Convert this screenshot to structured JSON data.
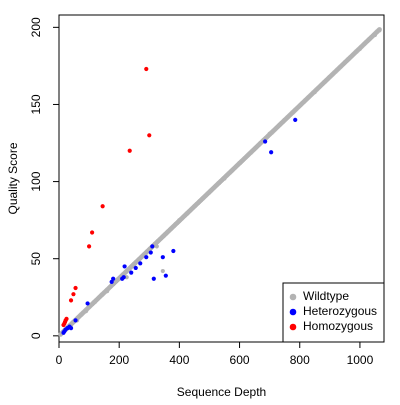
{
  "chart_data": {
    "type": "scatter",
    "xlabel": "Sequence Depth",
    "ylabel": "Quality Score",
    "xlim": [
      0,
      1080
    ],
    "ylim": [
      -4,
      208
    ],
    "x_ticks": [
      0,
      200,
      400,
      600,
      800,
      1000
    ],
    "x_tick_labels": [
      "0",
      "200",
      "400",
      "600",
      "800",
      "1000"
    ],
    "y_ticks": [
      0,
      50,
      100,
      150,
      200
    ],
    "y_tick_labels": [
      "0",
      "50",
      "100",
      "150",
      "200"
    ],
    "grid": false,
    "legend": {
      "position": "bottom-right",
      "entries": [
        {
          "label": "Wildtype",
          "color": "#b3b3b3"
        },
        {
          "label": "Heterozygous",
          "color": "#0000ff"
        },
        {
          "label": "Homozygous",
          "color": "#ff0000"
        }
      ]
    },
    "series": [
      {
        "name": "Wildtype",
        "color": "#b3b3b3",
        "trend": {
          "x_from": 5,
          "x_to": 1065,
          "slope": 0.1865,
          "intercept": 0
        },
        "points": [
          [
            20,
            4
          ],
          [
            30,
            5
          ],
          [
            40,
            7
          ],
          [
            60,
            10
          ],
          [
            90,
            16
          ],
          [
            120,
            22
          ],
          [
            160,
            29
          ],
          [
            200,
            37
          ],
          [
            250,
            46
          ],
          [
            300,
            56
          ],
          [
            350,
            65
          ],
          [
            400,
            75
          ],
          [
            450,
            84
          ],
          [
            500,
            93
          ],
          [
            550,
            102
          ],
          [
            600,
            112
          ],
          [
            650,
            121
          ],
          [
            700,
            131
          ],
          [
            750,
            140
          ],
          [
            800,
            149
          ],
          [
            850,
            158
          ],
          [
            900,
            168
          ],
          [
            950,
            177
          ],
          [
            1000,
            186
          ],
          [
            1050,
            195
          ],
          [
            1065,
            198
          ],
          [
            325,
            58
          ],
          [
            225,
            38
          ],
          [
            345,
            42
          ]
        ]
      },
      {
        "name": "Heterozygous",
        "color": "#0000ff",
        "points": [
          [
            15,
            2
          ],
          [
            18,
            3
          ],
          [
            22,
            4
          ],
          [
            28,
            5
          ],
          [
            35,
            6
          ],
          [
            40,
            5
          ],
          [
            55,
            10
          ],
          [
            95,
            21
          ],
          [
            175,
            35
          ],
          [
            180,
            37
          ],
          [
            210,
            37
          ],
          [
            215,
            38
          ],
          [
            218,
            45
          ],
          [
            240,
            41
          ],
          [
            255,
            44
          ],
          [
            270,
            47
          ],
          [
            290,
            51
          ],
          [
            305,
            54
          ],
          [
            310,
            58
          ],
          [
            315,
            37
          ],
          [
            345,
            51
          ],
          [
            355,
            39
          ],
          [
            380,
            55
          ],
          [
            685,
            126
          ],
          [
            705,
            119
          ],
          [
            785,
            140
          ]
        ]
      },
      {
        "name": "Homozygous",
        "color": "#ff0000",
        "points": [
          [
            15,
            7
          ],
          [
            18,
            8
          ],
          [
            20,
            9
          ],
          [
            22,
            10
          ],
          [
            25,
            11
          ],
          [
            40,
            23
          ],
          [
            48,
            27
          ],
          [
            55,
            31
          ],
          [
            100,
            58
          ],
          [
            110,
            67
          ],
          [
            145,
            84
          ],
          [
            235,
            120
          ],
          [
            290,
            173
          ],
          [
            300,
            130
          ]
        ]
      }
    ]
  }
}
